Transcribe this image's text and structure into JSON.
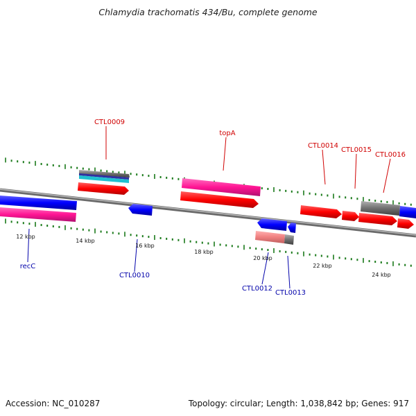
{
  "title": "Chlamydia trachomatis 434/Bu, complete genome",
  "footer": {
    "accession": "Accession: NC_010287",
    "summary": "Topology: circular; Length: 1,038,842 bp; Genes: 917"
  },
  "colors": {
    "backbone": "#8a8a8a",
    "tick": "#1a7a1a",
    "label_top": "#d00000",
    "label_bottom": "#0000aa",
    "red": "#ff0000",
    "magenta": "#ff1493",
    "blue": "#0000ff",
    "gray": "#707070",
    "pink": "#f08080",
    "cyan": "#20c0d0"
  },
  "scale_labels": [
    "12 kbp",
    "14 kbp",
    "16 kbp",
    "18 kbp",
    "20 kbp",
    "22 kbp",
    "24 kbp"
  ],
  "labels_top": [
    "CTL0009",
    "topA",
    "CTL0014",
    "CTL0015",
    "CTL0016"
  ],
  "labels_bottom": [
    "recC",
    "CTL0010",
    "CTL0012",
    "CTL0013"
  ]
}
